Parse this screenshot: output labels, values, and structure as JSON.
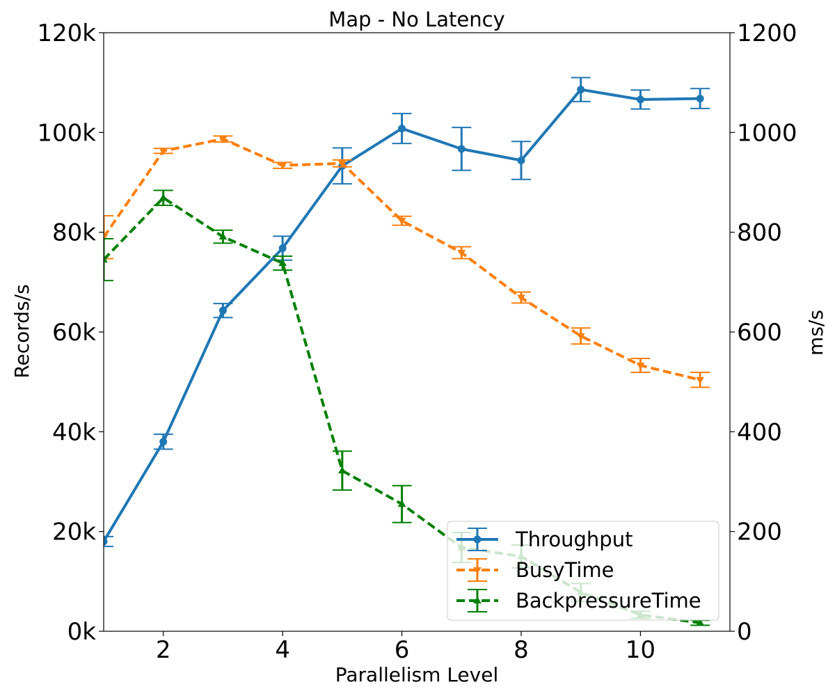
{
  "chart_data": {
    "type": "line",
    "title": "Map - No Latency",
    "xlabel": "Parallelism Level",
    "ylabel_left": "Records/s",
    "ylabel_right": "ms/s",
    "xlim": [
      1,
      11.5
    ],
    "ylim_left": [
      0,
      120000
    ],
    "ylim_right": [
      0,
      1200
    ],
    "x_ticks": [
      2,
      4,
      6,
      8,
      10
    ],
    "x_tick_labels": [
      "2",
      "4",
      "6",
      "8",
      "10"
    ],
    "y_left_ticks": [
      0,
      20000,
      40000,
      60000,
      80000,
      100000,
      120000
    ],
    "y_left_tick_labels": [
      "0k",
      "20k",
      "40k",
      "60k",
      "80k",
      "100k",
      "120k"
    ],
    "y_right_ticks": [
      0,
      200,
      400,
      600,
      800,
      1000,
      1200
    ],
    "y_right_tick_labels": [
      "0",
      "200",
      "400",
      "600",
      "800",
      "1000",
      "1200"
    ],
    "grid": false,
    "legend_position": "lower-right",
    "x": [
      1,
      2,
      3,
      4,
      5,
      6,
      7,
      8,
      9,
      10,
      11
    ],
    "series": [
      {
        "name": "Throughput",
        "axis": "left",
        "color": "#1f77b4",
        "style": "solid",
        "marker": "circle",
        "values": [
          18000,
          38000,
          64300,
          76800,
          93300,
          100800,
          96700,
          94400,
          108600,
          106600,
          106800
        ],
        "errors": [
          1000,
          1500,
          1400,
          2400,
          3600,
          3000,
          4300,
          3800,
          2400,
          1900,
          2000
        ]
      },
      {
        "name": "BusyTime",
        "axis": "right",
        "color": "#ff7f0e",
        "style": "dashed",
        "marker": "triangle-down",
        "values": [
          790,
          963,
          987,
          934,
          938,
          823,
          759,
          669,
          592,
          533,
          504
        ],
        "errors": [
          43,
          5,
          6,
          6,
          7,
          9,
          12,
          11,
          16,
          14,
          15
        ]
      },
      {
        "name": "BackpressureTime",
        "axis": "right",
        "color": "#008000",
        "style": "dashed",
        "marker": "triangle-up",
        "values": [
          745,
          869,
          791,
          738,
          322,
          255,
          168,
          150,
          78,
          33,
          17
        ],
        "errors": [
          42,
          15,
          13,
          14,
          39,
          37,
          30,
          23,
          18,
          7,
          5
        ]
      }
    ]
  }
}
